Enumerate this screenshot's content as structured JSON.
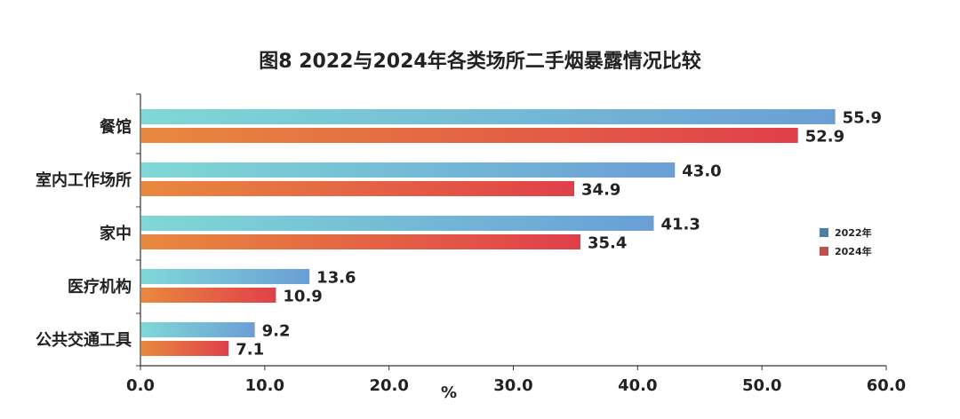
{
  "chart_data": {
    "type": "bar",
    "orientation": "horizontal",
    "title": "图8  2022与2024年各类场所二手烟暴露情况比较",
    "categories": [
      "餐馆",
      "室内工作场所",
      "家中",
      "医疗机构",
      "公共交通工具"
    ],
    "series": [
      {
        "name": "2022年",
        "values": [
          55.9,
          43.0,
          41.3,
          13.6,
          9.2
        ],
        "color": "#4a7fa6",
        "gradient": [
          "#7fd8d6",
          "#6a9fd6"
        ]
      },
      {
        "name": "2024年",
        "values": [
          52.9,
          34.9,
          35.4,
          10.9,
          7.1
        ],
        "color": "#c0504d",
        "gradient": [
          "#e8893e",
          "#e0404a"
        ]
      }
    ],
    "value_labels": [
      [
        "55.9",
        "43.0",
        "41.3",
        "13.6",
        "9.2"
      ],
      [
        "52.9",
        "34.9",
        "35.4",
        "10.9",
        "7.1"
      ]
    ],
    "xlabel": "%",
    "ylabel": "",
    "xlim": [
      0,
      60
    ],
    "x_ticks": [
      "0.0",
      "10.0",
      "20.0",
      "30.0",
      "40.0",
      "50.0",
      "60.0"
    ],
    "grid": false,
    "legend_position": "right"
  }
}
